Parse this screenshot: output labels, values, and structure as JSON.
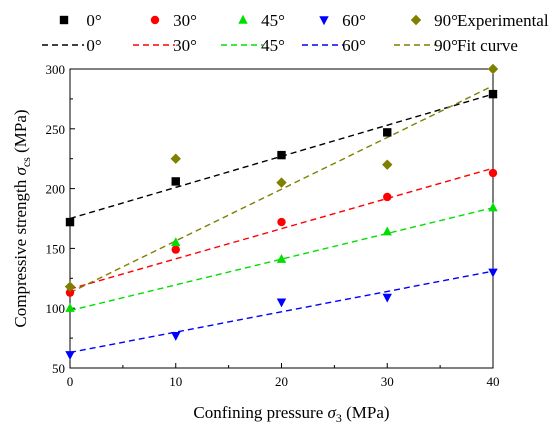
{
  "chart_data": {
    "type": "scatter",
    "xlabel_main": "Confining pressure ",
    "xlabel_symbol": "σ",
    "xlabel_sub": "3",
    "xlabel_unit": " (MPa)",
    "ylabel_main": "Compressive strength ",
    "ylabel_symbol": "σ",
    "ylabel_sub": "cs",
    "ylabel_unit": " (MPa)",
    "xlim": [
      0,
      40
    ],
    "ylim": [
      50,
      300
    ],
    "x_ticks": [
      "0",
      "10",
      "20",
      "30",
      "40"
    ],
    "y_ticks": [
      "50",
      "100",
      "150",
      "200",
      "250",
      "300"
    ],
    "grid": false,
    "legend_position": "top",
    "legend_row1_label": "Experimental data",
    "legend_row2_label": "Fit curve",
    "x": [
      0,
      10,
      20,
      30,
      40
    ],
    "series": [
      {
        "name": "0°",
        "color": "#000000",
        "marker": "square",
        "values": [
          172,
          206,
          228,
          247,
          279
        ],
        "fit": [
          175,
          279
        ]
      },
      {
        "name": "30°",
        "color": "#ff0000",
        "marker": "circle",
        "values": [
          113,
          149,
          172,
          193,
          213
        ],
        "fit": [
          116,
          217
        ]
      },
      {
        "name": "45°",
        "color": "#00e000",
        "marker": "triangle-up",
        "values": [
          100,
          155,
          141,
          164,
          184
        ],
        "fit": [
          98,
          184
        ]
      },
      {
        "name": "60°",
        "color": "#0000ff",
        "marker": "triangle-down",
        "values": [
          61,
          77,
          105,
          109,
          130
        ],
        "fit": [
          63,
          131
        ]
      },
      {
        "name": "90°",
        "color": "#7f7f00",
        "marker": "diamond",
        "values": [
          118,
          225,
          205,
          220,
          300
        ],
        "fit": [
          113,
          286
        ]
      }
    ]
  }
}
